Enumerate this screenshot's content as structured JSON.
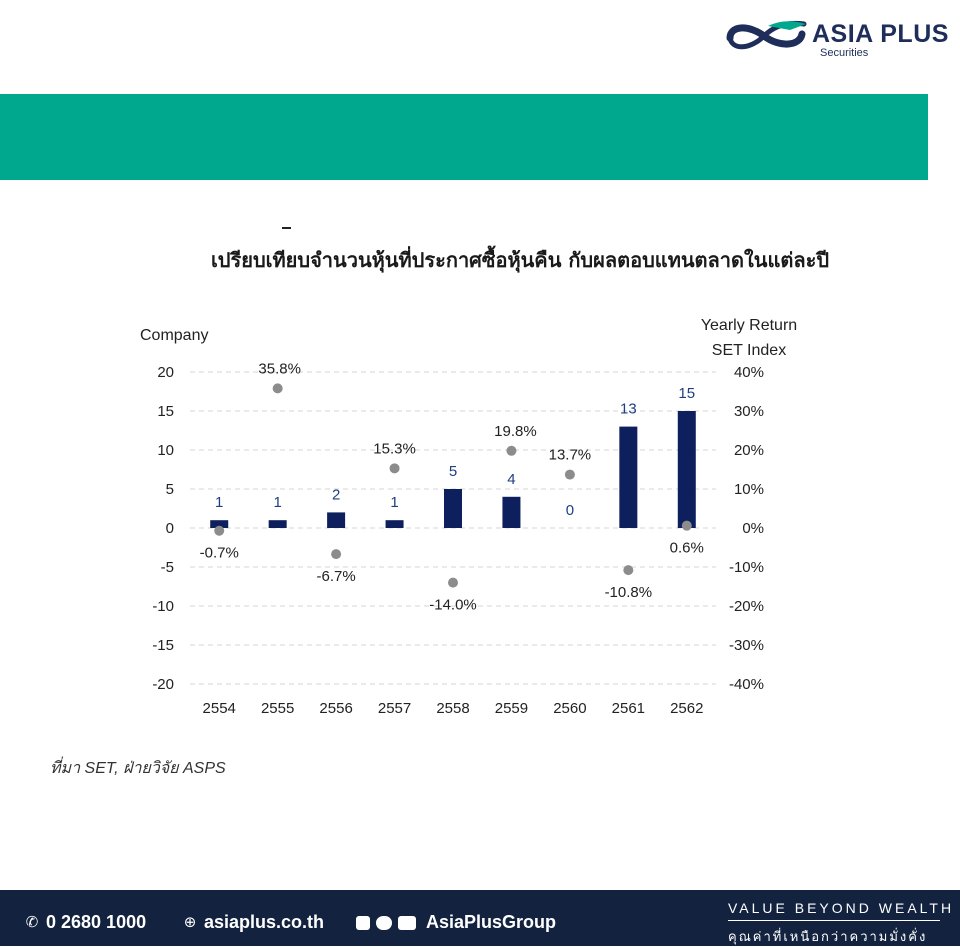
{
  "brand": {
    "name": "ASIA PLUS",
    "sub": "Securities",
    "colors": {
      "navy": "#1e2d5a",
      "teal": "#00a88e",
      "footer": "#12223f"
    }
  },
  "chart_data": {
    "type": "bar",
    "title": "เปรียบเทียบจำนวนหุ้นที่ประกาศซื้อหุ้นคืน กับผลตอบแทนตลาดในแต่ละปี",
    "ylabel": "Company",
    "y2label_line1": "Yearly Return",
    "y2label_line2": "SET Index",
    "categories": [
      "2554",
      "2555",
      "2556",
      "2557",
      "2558",
      "2559",
      "2560",
      "2561",
      "2562"
    ],
    "ylim": [
      -20,
      20
    ],
    "y2lim": [
      -40,
      40
    ],
    "yticks": [
      "20",
      "15",
      "10",
      "5",
      "0",
      "-5",
      "-10",
      "-15",
      "-20"
    ],
    "y2ticks": [
      "40%",
      "30%",
      "20%",
      "10%",
      "0%",
      "-10%",
      "-20%",
      "-30%",
      "-40%"
    ],
    "grid": true,
    "series": [
      {
        "kind": "bar",
        "values": [
          1,
          1,
          2,
          1,
          5,
          4,
          0,
          13,
          15
        ],
        "color": "#0d1f5c"
      },
      {
        "kind": "scatter",
        "axis": "right",
        "values": [
          -0.7,
          35.8,
          -6.7,
          15.3,
          -14.0,
          19.8,
          13.7,
          -10.8,
          0.6
        ],
        "labels": [
          "-0.7%",
          "35.8%",
          "-6.7%",
          "15.3%",
          "-14.0%",
          "19.8%",
          "13.7%",
          "-10.8%",
          "0.6%"
        ],
        "color": "#8c8c8c"
      }
    ],
    "source": "ที่มา SET, ฝ่ายวิจัย ASPS"
  },
  "footer": {
    "phone": "0 2680 1000",
    "website": "asiaplus.co.th",
    "social": "AsiaPlusGroup",
    "tagline": "VALUE BEYOND WEALTH",
    "tagline_th": "คุณค่าที่เหนือกว่าความมั่งคั่ง"
  }
}
